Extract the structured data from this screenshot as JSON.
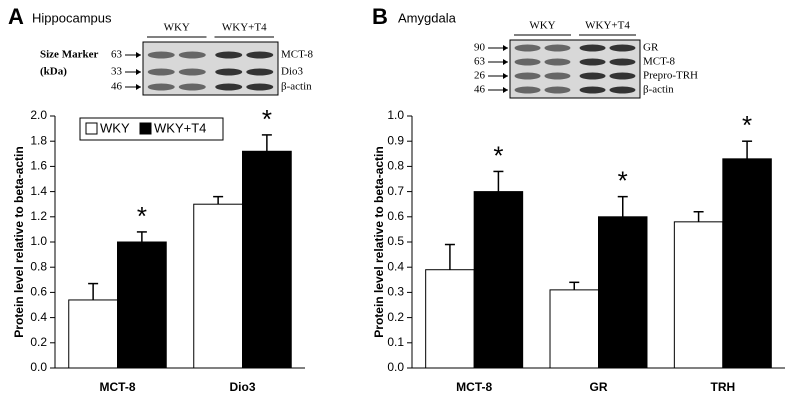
{
  "chart_data": [
    {
      "type": "bar",
      "panel": "A",
      "title": "Hippocampus",
      "ylabel": "Protein level relative to beta-actin",
      "categories": [
        "MCT-8",
        "Dio3"
      ],
      "series": [
        {
          "name": "WKY",
          "color": "#ffffff",
          "values": [
            0.54,
            1.3
          ],
          "errors": [
            0.13,
            0.06
          ]
        },
        {
          "name": "WKY+T4",
          "color": "#000000",
          "values": [
            1.0,
            1.72
          ],
          "errors": [
            0.08,
            0.13
          ]
        }
      ],
      "ylim": [
        0,
        2.0
      ],
      "yticks": [
        {
          "value": 0,
          "label": "0.0"
        },
        0.2,
        0.4,
        0.6,
        0.8,
        {
          "value": 1,
          "label": "1.0"
        },
        1.2,
        1.4,
        1.6,
        1.8,
        {
          "value": 2,
          "label": "2.0"
        }
      ],
      "legend": true,
      "legend_position": "upper-left",
      "annotations": [
        {
          "text": "*",
          "category": "MCT-8",
          "series": "WKY+T4"
        },
        {
          "text": "*",
          "category": "Dio3",
          "series": "WKY+T4"
        }
      ],
      "blot": {
        "groups": [
          "WKY",
          "WKY+T4"
        ],
        "marker_label": [
          "Size Marker",
          "(kDa)"
        ],
        "markers": [
          63,
          33,
          46
        ],
        "bands": [
          "MCT-8",
          "Dio3",
          "β-actin"
        ]
      }
    },
    {
      "type": "bar",
      "panel": "B",
      "title": "Amygdala",
      "ylabel": "Protein level relative to beta-actin",
      "categories": [
        "MCT-8",
        "GR",
        "TRH"
      ],
      "series": [
        {
          "name": "WKY",
          "color": "#ffffff",
          "values": [
            0.39,
            0.31,
            0.58
          ],
          "errors": [
            0.1,
            0.03,
            0.04
          ]
        },
        {
          "name": "WKY+T4",
          "color": "#000000",
          "values": [
            0.7,
            0.6,
            0.83
          ],
          "errors": [
            0.08,
            0.08,
            0.07
          ]
        }
      ],
      "ylim": [
        0,
        1.0
      ],
      "yticks": [
        {
          "value": 0,
          "label": "0.0"
        },
        0.1,
        0.2,
        0.3,
        0.4,
        0.5,
        0.6,
        0.7,
        0.8,
        0.9,
        {
          "value": 1,
          "label": "1.0"
        }
      ],
      "legend": false,
      "annotations": [
        {
          "text": "*",
          "category": "MCT-8",
          "series": "WKY+T4"
        },
        {
          "text": "*",
          "category": "GR",
          "series": "WKY+T4"
        },
        {
          "text": "*",
          "category": "TRH",
          "series": "WKY+T4"
        }
      ],
      "blot": {
        "groups": [
          "WKY",
          "WKY+T4"
        ],
        "markers": [
          90,
          63,
          26,
          46
        ],
        "bands": [
          "GR",
          "MCT-8",
          "Prepro-TRH",
          "β-actin"
        ]
      }
    }
  ]
}
